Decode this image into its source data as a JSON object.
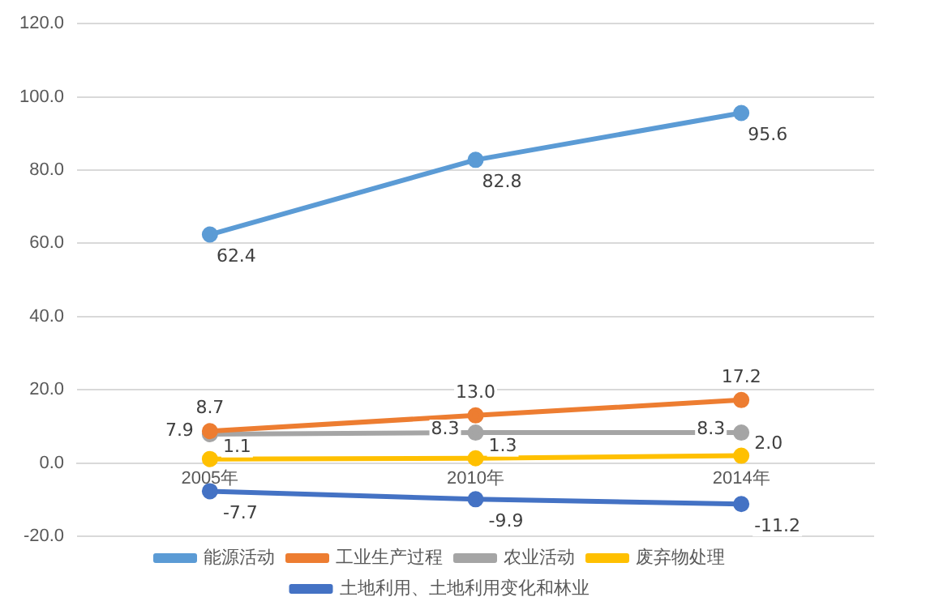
{
  "chart_data": {
    "type": "line",
    "categories": [
      "2005年",
      "2010年",
      "2014年"
    ],
    "series": [
      {
        "name": "能源活动",
        "color": "#5b9bd5",
        "values": [
          62.4,
          82.8,
          95.6
        ],
        "value_labels": [
          "62.4",
          "82.8",
          "95.6"
        ]
      },
      {
        "name": "工业生产过程",
        "color": "#ed7d31",
        "values": [
          8.7,
          13.0,
          17.2
        ],
        "value_labels": [
          "8.7",
          "13.0",
          "17.2"
        ]
      },
      {
        "name": "农业活动",
        "color": "#a5a5a5",
        "values": [
          7.9,
          8.3,
          8.3
        ],
        "value_labels": [
          "7.9",
          "8.3",
          "8.3"
        ]
      },
      {
        "name": "废弃物处理",
        "color": "#ffc000",
        "values": [
          1.1,
          1.3,
          2.0
        ],
        "value_labels": [
          "1.1",
          "1.3",
          "2.0"
        ]
      },
      {
        "name": "土地利用、土地利用变化和林业",
        "color": "#4472c4",
        "values": [
          -7.7,
          -9.9,
          -11.2
        ],
        "value_labels": [
          "-7.7",
          "-9.9",
          "-11.2"
        ]
      }
    ],
    "ylim": [
      -20,
      120
    ],
    "yticks": [
      {
        "value": -20,
        "label": "-20.0"
      },
      {
        "value": 0,
        "label": "0.0"
      },
      {
        "value": 20,
        "label": "20.0"
      },
      {
        "value": 40,
        "label": "40.0"
      },
      {
        "value": 60,
        "label": "60.0"
      },
      {
        "value": 80,
        "label": "80.0"
      },
      {
        "value": 100,
        "label": "100.0"
      },
      {
        "value": 120,
        "label": "120.0"
      }
    ],
    "grid": "y",
    "legend": "bottom",
    "marker": "circle",
    "line_style": "solid"
  }
}
